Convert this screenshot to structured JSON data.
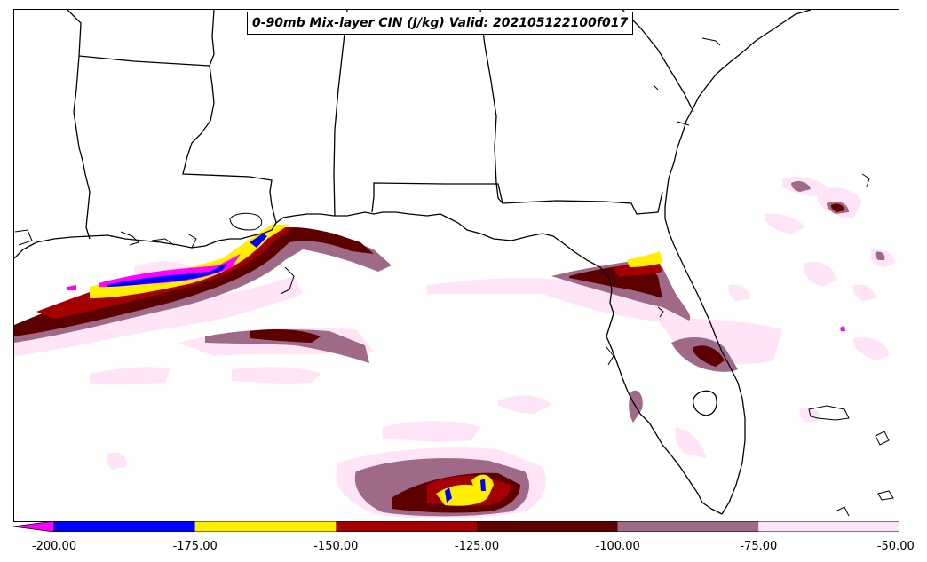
{
  "title": "0-90mb Mix-layer CIN (J/kg) Valid: 202105122100f017",
  "colorbar": {
    "ticks": [
      "-200.00",
      "-175.00",
      "-150.00",
      "-125.00",
      "-100.00",
      "-75.00",
      "-50.00"
    ],
    "bins": [
      {
        "from": -200,
        "to": -175,
        "color": "#0000ff"
      },
      {
        "from": -175,
        "to": -150,
        "color": "#ffee00"
      },
      {
        "from": -150,
        "to": -125,
        "color": "#a50000"
      },
      {
        "from": -125,
        "to": -100,
        "color": "#5c0000"
      },
      {
        "from": -100,
        "to": -75,
        "color": "#9e6a88"
      },
      {
        "from": -75,
        "to": -50,
        "color": "#ffe4f7"
      }
    ],
    "extend_min_color": "#ff00ff"
  },
  "colors": {
    "lightest": "#ffe4f7",
    "mauve": "#9e6a88",
    "dark_maroon": "#5c0000",
    "red": "#a50000",
    "yellow": "#ffee00",
    "blue": "#0000ff",
    "magenta": "#ff00ff",
    "coast": "#000000"
  },
  "map": {
    "region": "Gulf of Mexico / Southeastern United States"
  }
}
